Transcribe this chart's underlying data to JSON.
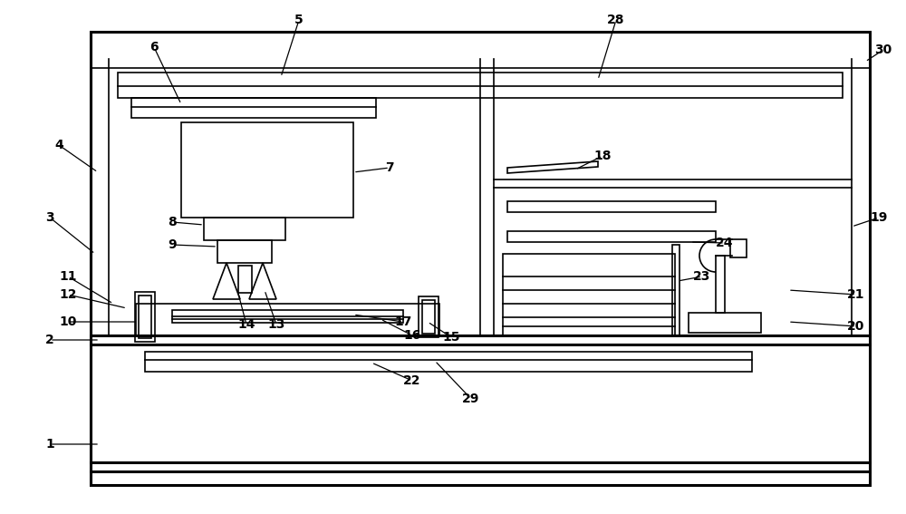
{
  "bg_color": "#ffffff",
  "lc": "#000000",
  "lw": 1.2,
  "tlw": 2.2,
  "fig_width": 10.0,
  "fig_height": 5.67
}
